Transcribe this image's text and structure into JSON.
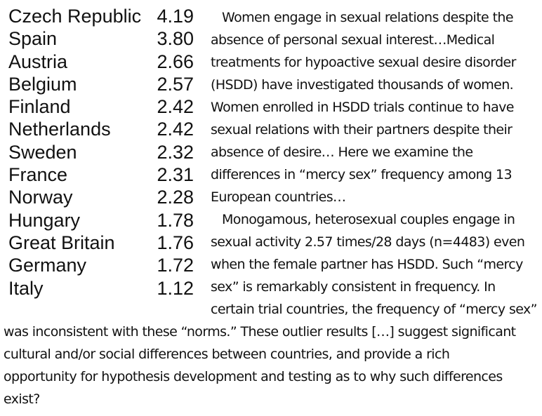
{
  "table": {
    "rows": [
      {
        "country": "Czech Republic",
        "value": "4.19"
      },
      {
        "country": "Spain",
        "value": "3.80"
      },
      {
        "country": "Austria",
        "value": "2.66"
      },
      {
        "country": "Belgium",
        "value": "2.57"
      },
      {
        "country": "Finland",
        "value": "2.42"
      },
      {
        "country": "Netherlands",
        "value": "2.42"
      },
      {
        "country": "Sweden",
        "value": "2.32"
      },
      {
        "country": "France",
        "value": "2.31"
      },
      {
        "country": "Norway",
        "value": "2.28"
      },
      {
        "country": "Hungary",
        "value": "1.78"
      },
      {
        "country": "Great Britain",
        "value": "1.76"
      },
      {
        "country": "Germany",
        "value": "1.72"
      },
      {
        "country": "Italy",
        "value": "1.12"
      }
    ]
  },
  "text": {
    "right_lines": [
      "Women engage in sexual relations despite the",
      "absence of personal sexual interest…Medical",
      "treatments for hypoactive sexual desire disorder",
      "(HSDD) have investigated thousands of women.",
      "Women enrolled in HSDD trials continue to have",
      "sexual relations with their partners despite their",
      "absence of desire… Here we examine the",
      "differences in “mercy sex” frequency among 13",
      "European countries…",
      "Monogamous, heterosexual couples engage in",
      "sexual activity 2.57 times/28 days (n=4483) even",
      "when the female partner has HSDD. Such “mercy",
      "sex” is remarkably consistent in frequency. In",
      "certain trial countries, the frequency of “mercy sex”"
    ],
    "bottom_lines": [
      "was inconsistent with these “norms.” These outlier results […] suggest significant",
      "cultural and/or social differences between countries, and provide a rich",
      "opportunity for hypothesis development and testing as to why such differences",
      "exist?"
    ]
  }
}
